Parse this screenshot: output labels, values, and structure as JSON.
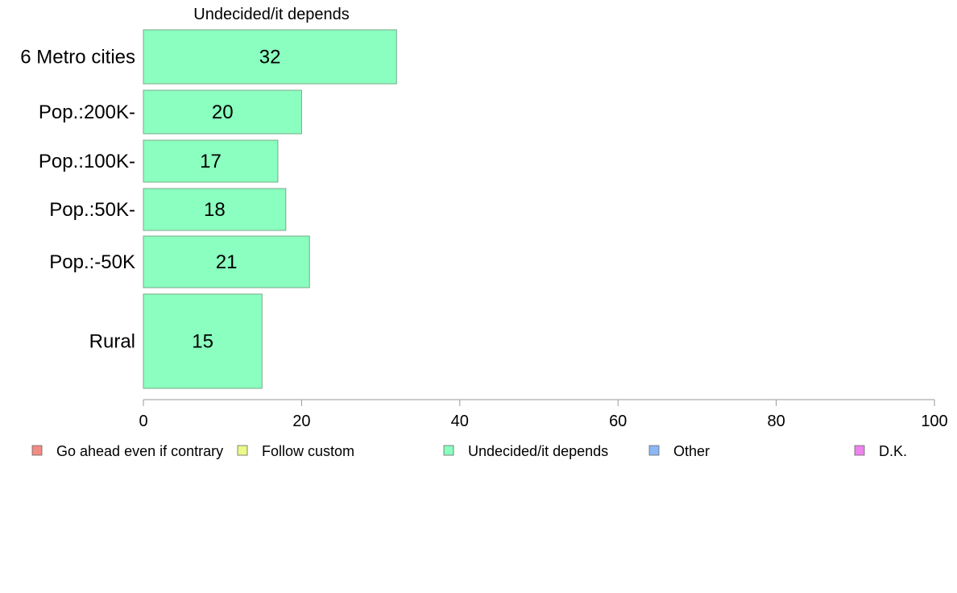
{
  "chart_data": {
    "type": "bar",
    "orientation": "horizontal",
    "title": "Undecided/it depends",
    "categories": [
      "6 Metro cities",
      "Pop.:200K-",
      "Pop.:100K-",
      "Pop.:50K-",
      "Pop.:-50K",
      "Rural"
    ],
    "series": [
      {
        "name": "Undecided/it depends",
        "values": [
          32,
          20,
          17,
          18,
          21,
          15
        ]
      }
    ],
    "xlim": [
      0,
      100
    ],
    "xticks": [
      0,
      20,
      40,
      60,
      80,
      100
    ],
    "grid": false,
    "legend_position": "bottom",
    "legend": [
      {
        "label": "Go ahead even if contrary",
        "color": "#f28b82"
      },
      {
        "label": "Follow custom",
        "color": "#ecf98a"
      },
      {
        "label": "Undecided/it depends",
        "color": "#8affbf"
      },
      {
        "label": "Other",
        "color": "#8ab8f5"
      },
      {
        "label": "D.K.",
        "color": "#ee82ee"
      }
    ],
    "bar_color": "#8affbf"
  }
}
